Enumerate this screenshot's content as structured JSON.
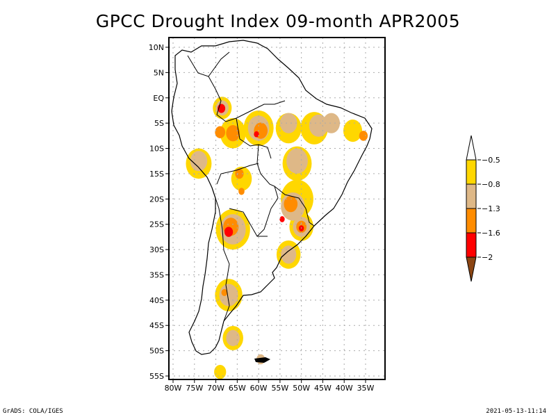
{
  "title": "GPCC Drought Index 09-month APR2005",
  "map": {
    "region": "South America",
    "lat_range": [
      -55,
      10
    ],
    "lon_range": [
      -80,
      -32
    ],
    "lat_ticks": [
      {
        "value": 10,
        "label": "10N"
      },
      {
        "value": 5,
        "label": "5N"
      },
      {
        "value": 0,
        "label": "EQ"
      },
      {
        "value": -5,
        "label": "5S"
      },
      {
        "value": -10,
        "label": "10S"
      },
      {
        "value": -15,
        "label": "15S"
      },
      {
        "value": -20,
        "label": "20S"
      },
      {
        "value": -25,
        "label": "25S"
      },
      {
        "value": -30,
        "label": "30S"
      },
      {
        "value": -35,
        "label": "35S"
      },
      {
        "value": -40,
        "label": "40S"
      },
      {
        "value": -45,
        "label": "45S"
      },
      {
        "value": -50,
        "label": "50S"
      },
      {
        "value": -55,
        "label": "55S"
      }
    ],
    "lon_ticks": [
      {
        "value": -80,
        "label": "80W"
      },
      {
        "value": -75,
        "label": "75W"
      },
      {
        "value": -70,
        "label": "70W"
      },
      {
        "value": -65,
        "label": "65W"
      },
      {
        "value": -60,
        "label": "60W"
      },
      {
        "value": -55,
        "label": "55W"
      },
      {
        "value": -50,
        "label": "50W"
      },
      {
        "value": -45,
        "label": "45W"
      },
      {
        "value": -40,
        "label": "40W"
      },
      {
        "value": -35,
        "label": "35W"
      }
    ],
    "drought_regions": [
      {
        "level": 1,
        "lon": -68.5,
        "lat": -2,
        "r": 2.2
      },
      {
        "level": 2,
        "lon": -68.5,
        "lat": -2,
        "r": 1.5
      },
      {
        "level": 4,
        "lon": -68.7,
        "lat": -2.1,
        "r": 0.9
      },
      {
        "level": 1,
        "lon": -66,
        "lat": -7,
        "r": 3.0
      },
      {
        "level": 3,
        "lon": -66,
        "lat": -7,
        "r": 1.6
      },
      {
        "level": 3,
        "lon": -69,
        "lat": -6.8,
        "r": 1.2
      },
      {
        "level": 1,
        "lon": -60,
        "lat": -6,
        "r": 3.5
      },
      {
        "level": 2,
        "lon": -60,
        "lat": -6,
        "r": 2.5
      },
      {
        "level": 3,
        "lon": -59.5,
        "lat": -6.5,
        "r": 1.6
      },
      {
        "level": 4,
        "lon": -60.5,
        "lat": -7.2,
        "r": 0.6
      },
      {
        "level": 1,
        "lon": -53,
        "lat": -6,
        "r": 3.0
      },
      {
        "level": 2,
        "lon": -53,
        "lat": -5,
        "r": 2.0
      },
      {
        "level": 1,
        "lon": -47,
        "lat": -6,
        "r": 3.2
      },
      {
        "level": 2,
        "lon": -46,
        "lat": -5.5,
        "r": 2.2
      },
      {
        "level": 2,
        "lon": -43,
        "lat": -5,
        "r": 2.0
      },
      {
        "level": 1,
        "lon": -38,
        "lat": -6.5,
        "r": 2.2
      },
      {
        "level": 3,
        "lon": -35.5,
        "lat": -7.5,
        "r": 1.0
      },
      {
        "level": 1,
        "lon": -74,
        "lat": -13,
        "r": 3.0
      },
      {
        "level": 2,
        "lon": -74,
        "lat": -12.5,
        "r": 2.0
      },
      {
        "level": 1,
        "lon": -64,
        "lat": -16,
        "r": 2.4
      },
      {
        "level": 3,
        "lon": -64.5,
        "lat": -15,
        "r": 1.0
      },
      {
        "level": 3,
        "lon": -64,
        "lat": -18.5,
        "r": 0.7
      },
      {
        "level": 1,
        "lon": -51,
        "lat": -13,
        "r": 3.4
      },
      {
        "level": 2,
        "lon": -51,
        "lat": -12.5,
        "r": 2.5
      },
      {
        "level": 1,
        "lon": -51,
        "lat": -20,
        "r": 3.8
      },
      {
        "level": 2,
        "lon": -52,
        "lat": -21.5,
        "r": 2.8
      },
      {
        "level": 3,
        "lon": -52.5,
        "lat": -21,
        "r": 1.6
      },
      {
        "level": 4,
        "lon": -54.5,
        "lat": -24,
        "r": 0.6
      },
      {
        "level": 1,
        "lon": -66,
        "lat": -26,
        "r": 4.0
      },
      {
        "level": 2,
        "lon": -66,
        "lat": -26,
        "r": 3.0
      },
      {
        "level": 3,
        "lon": -66.5,
        "lat": -25.5,
        "r": 1.8
      },
      {
        "level": 4,
        "lon": -67,
        "lat": -26.5,
        "r": 1.0
      },
      {
        "level": 1,
        "lon": -50,
        "lat": -25.5,
        "r": 2.8
      },
      {
        "level": 2,
        "lon": -50,
        "lat": -25.5,
        "r": 2.0
      },
      {
        "level": 3,
        "lon": -50,
        "lat": -25.5,
        "r": 1.2
      },
      {
        "level": 4,
        "lon": -50,
        "lat": -25.8,
        "r": 0.6
      },
      {
        "level": 1,
        "lon": -53,
        "lat": -31,
        "r": 2.8
      },
      {
        "level": 2,
        "lon": -53,
        "lat": -31,
        "r": 1.8
      },
      {
        "level": 1,
        "lon": -67,
        "lat": -39,
        "r": 3.2
      },
      {
        "level": 2,
        "lon": -67,
        "lat": -39,
        "r": 2.2
      },
      {
        "level": 3,
        "lon": -68,
        "lat": -38.5,
        "r": 0.7
      },
      {
        "level": 1,
        "lon": -66,
        "lat": -47.5,
        "r": 2.4
      },
      {
        "level": 2,
        "lon": -66,
        "lat": -47.5,
        "r": 1.6
      },
      {
        "level": 1,
        "lon": -69,
        "lat": -54.2,
        "r": 1.4
      },
      {
        "level": 2,
        "lon": -59.5,
        "lat": -51.7,
        "r": 1.0
      }
    ]
  },
  "legend": {
    "labels": [
      "-0.5",
      "-0.8",
      "-1.3",
      "-1.6",
      "-2"
    ],
    "colors": {
      "above": "#ffffff",
      "level1": "#ffd700",
      "level2": "#deb887",
      "level3": "#ff8c00",
      "level4": "#ff0000",
      "below": "#8b4513"
    }
  },
  "footer": {
    "left": "GrADS: COLA/IGES",
    "right": "2021-05-13-11:14"
  }
}
